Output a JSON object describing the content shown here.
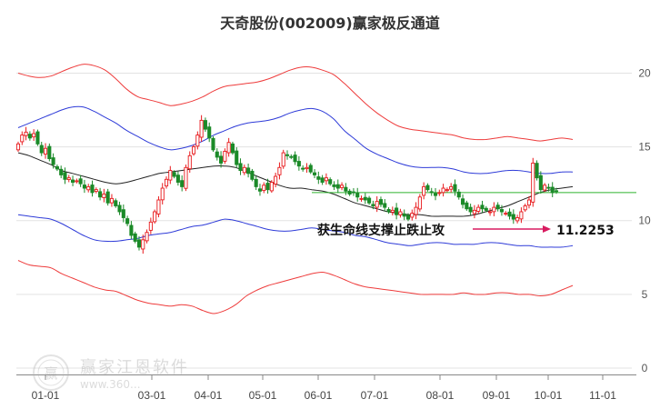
{
  "chart_data": {
    "type": "candlestick",
    "title": "天奇股份(002009)赢家极反通道",
    "xlabel": "",
    "ylabel": "",
    "ylim": [
      0,
      22
    ],
    "yticks": [
      0,
      5,
      10,
      15,
      20
    ],
    "xticks": [
      "01-01",
      "03-01",
      "04-01",
      "05-01",
      "06-01",
      "07-01",
      "08-01",
      "09-01",
      "10-01",
      "11-01"
    ],
    "grid": true,
    "colors": {
      "up": "#e8191c",
      "down": "#1b8a28",
      "outer_band": "#ee3b3b",
      "inner_band": "#2e3bd8",
      "mid_line": "#222222",
      "support_line": "#2fb52f",
      "arrow": "#d81b60"
    },
    "closes": [
      15.2,
      15.8,
      16.0,
      15.6,
      15.9,
      15.2,
      14.6,
      14.9,
      14.2,
      13.8,
      13.5,
      13.1,
      12.8,
      12.9,
      12.6,
      12.7,
      12.5,
      12.2,
      12.3,
      11.9,
      12.1,
      11.6,
      11.8,
      11.2,
      11.5,
      11.0,
      10.6,
      10.2,
      9.8,
      9.0,
      8.6,
      8.2,
      8.7,
      9.2,
      9.9,
      10.6,
      11.4,
      12.2,
      12.8,
      13.4,
      13.0,
      12.6,
      12.3,
      13.6,
      14.4,
      15.0,
      15.8,
      16.8,
      16.2,
      15.6,
      14.8,
      14.3,
      13.9,
      14.7,
      15.3,
      14.6,
      13.8,
      13.4,
      13.6,
      13.2,
      12.8,
      12.3,
      12.0,
      12.4,
      12.1,
      12.6,
      13.0,
      13.6,
      14.6,
      14.4,
      14.3,
      14.0,
      13.7,
      13.5,
      13.6,
      13.3,
      13.1,
      12.8,
      12.6,
      12.9,
      12.5,
      12.3,
      12.2,
      12.4,
      12.0,
      11.8,
      11.9,
      11.6,
      11.5,
      11.4,
      11.2,
      11.0,
      11.3,
      11.1,
      10.9,
      10.6,
      10.7,
      10.4,
      10.6,
      10.3,
      10.1,
      10.5,
      10.9,
      11.6,
      12.3,
      12.1,
      11.9,
      11.7,
      11.9,
      12.2,
      12.1,
      12.3,
      12.0,
      11.6,
      11.1,
      10.8,
      10.6,
      10.7,
      10.9,
      10.8,
      10.7,
      10.6,
      10.9,
      10.8,
      10.6,
      10.5,
      10.3,
      10.1,
      10.2,
      10.6,
      11.0,
      11.4,
      13.9,
      12.9,
      12.1,
      12.4,
      12.2,
      11.9,
      12.0
    ],
    "upper_outer": [
      20.0,
      19.8,
      19.7,
      19.8,
      20.1,
      20.4,
      20.6,
      20.5,
      20.2,
      19.6,
      18.9,
      18.4,
      18.2,
      18.0,
      17.8,
      17.9,
      18.1,
      18.4,
      18.8,
      19.1,
      19.2,
      19.3,
      19.4,
      19.6,
      19.9,
      20.2,
      20.4,
      20.4,
      20.2,
      19.9,
      19.3,
      18.6,
      17.9,
      17.3,
      16.8,
      16.4,
      16.2,
      16.1,
      16.0,
      15.9,
      15.8,
      15.6,
      15.5,
      15.5,
      15.6,
      15.7,
      15.6,
      15.5,
      15.4,
      15.5,
      15.6,
      15.5
    ],
    "upper_inner": [
      16.3,
      16.6,
      16.9,
      17.2,
      17.5,
      17.7,
      17.7,
      17.4,
      17.0,
      16.6,
      16.1,
      15.7,
      15.3,
      15.0,
      14.8,
      14.9,
      15.1,
      15.4,
      15.8,
      16.1,
      16.4,
      16.6,
      16.7,
      16.8,
      17.0,
      17.3,
      17.5,
      17.6,
      17.4,
      16.9,
      16.1,
      15.5,
      14.9,
      14.5,
      14.2,
      13.9,
      13.7,
      13.6,
      13.6,
      13.6,
      13.5,
      13.3,
      13.2,
      13.2,
      13.3,
      13.4,
      13.4,
      13.3,
      13.2,
      13.2,
      13.3,
      13.3
    ],
    "middle": [
      14.6,
      14.4,
      14.1,
      13.8,
      13.4,
      13.2,
      13.0,
      12.8,
      12.6,
      12.5,
      12.6,
      12.8,
      13.0,
      13.2,
      13.3,
      13.4,
      13.5,
      13.6,
      13.7,
      13.7,
      13.6,
      13.3,
      13.0,
      12.7,
      12.4,
      12.2,
      12.2,
      12.1,
      12.0,
      11.8,
      11.5,
      11.2,
      11.0,
      10.8,
      10.6,
      10.5,
      10.4,
      10.4,
      10.3,
      10.3,
      10.3,
      10.3,
      10.4,
      10.6,
      10.8,
      11.0,
      11.3,
      11.6,
      11.9,
      12.1,
      12.2,
      12.3
    ],
    "lower_inner": [
      10.4,
      10.3,
      10.2,
      10.1,
      9.8,
      9.4,
      9.0,
      8.7,
      8.6,
      8.6,
      8.7,
      8.8,
      9.0,
      9.1,
      9.2,
      9.4,
      9.6,
      9.7,
      9.9,
      10.1,
      10.0,
      9.8,
      9.6,
      9.4,
      9.3,
      9.3,
      9.4,
      9.5,
      9.4,
      9.3,
      9.2,
      9.0,
      8.9,
      8.7,
      8.5,
      8.4,
      8.3,
      8.4,
      8.5,
      8.5,
      8.4,
      8.4,
      8.4,
      8.5,
      8.5,
      8.4,
      8.3,
      8.3,
      8.2,
      8.2,
      8.2,
      8.3
    ],
    "lower_outer": [
      7.3,
      7.0,
      6.9,
      6.8,
      6.4,
      6.1,
      5.8,
      5.5,
      5.3,
      5.2,
      4.9,
      4.6,
      4.4,
      4.3,
      4.2,
      4.3,
      4.2,
      3.9,
      3.7,
      3.9,
      4.3,
      4.9,
      5.3,
      5.6,
      5.8,
      6.0,
      6.2,
      6.4,
      6.5,
      6.3,
      6.0,
      5.7,
      5.5,
      5.4,
      5.3,
      5.2,
      5.1,
      5.0,
      5.0,
      5.0,
      5.0,
      5.1,
      5.0,
      5.0,
      5.1,
      5.1,
      5.0,
      5.0,
      4.9,
      5.0,
      5.3,
      5.6
    ],
    "support_level": 11.9,
    "annotation": {
      "text": "获生命线支撑止跌止攻",
      "price_label": "11.2253"
    }
  },
  "watermark": {
    "logo_text": "赢",
    "name": "赢家江恩软件",
    "url": "www.360..."
  }
}
